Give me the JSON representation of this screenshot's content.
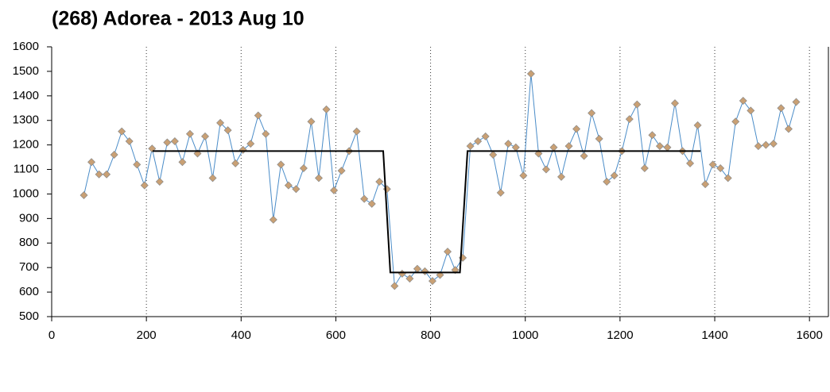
{
  "chart_data": {
    "type": "line",
    "title": "(268) Adorea - 2013 Aug 10",
    "xlim": [
      0,
      1640
    ],
    "ylim": [
      500,
      1600
    ],
    "xticks": [
      0,
      200,
      400,
      600,
      800,
      1000,
      1200,
      1400,
      1600
    ],
    "yticks": [
      500,
      600,
      700,
      800,
      900,
      1000,
      1100,
      1200,
      1300,
      1400,
      1500,
      1600
    ],
    "grid": true,
    "series": [
      {
        "color": "#4a8cc8",
        "marker_color": "#c9a074",
        "x": [
          68,
          84,
          100,
          116,
          132,
          148,
          164,
          180,
          196,
          212,
          228,
          244,
          260,
          276,
          292,
          308,
          324,
          340,
          356,
          372,
          388,
          404,
          420,
          436,
          452,
          468,
          484,
          500,
          516,
          532,
          548,
          564,
          580,
          596,
          612,
          628,
          644,
          660,
          676,
          692,
          708,
          724,
          740,
          756,
          772,
          788,
          804,
          820,
          836,
          852,
          868,
          884,
          900,
          916,
          932,
          948,
          964,
          980,
          996,
          1012,
          1028,
          1044,
          1060,
          1076,
          1092,
          1108,
          1124,
          1140,
          1156,
          1172,
          1188,
          1204,
          1220,
          1236,
          1252,
          1268,
          1284,
          1300,
          1316,
          1332,
          1348,
          1364,
          1380,
          1396,
          1412,
          1428,
          1444,
          1460,
          1476,
          1492,
          1508,
          1524,
          1540,
          1556,
          1572
        ],
        "values": [
          995,
          1130,
          1080,
          1080,
          1160,
          1255,
          1215,
          1120,
          1035,
          1185,
          1050,
          1210,
          1215,
          1130,
          1245,
          1165,
          1235,
          1065,
          1290,
          1260,
          1125,
          1180,
          1205,
          1320,
          1245,
          895,
          1120,
          1035,
          1020,
          1105,
          1295,
          1065,
          1345,
          1015,
          1095,
          1175,
          1255,
          980,
          960,
          1050,
          1020,
          625,
          675,
          655,
          695,
          685,
          645,
          670,
          765,
          690,
          740,
          1195,
          1215,
          1235,
          1160,
          1005,
          1205,
          1190,
          1075,
          1490,
          1165,
          1100,
          1190,
          1070,
          1195,
          1265,
          1155,
          1330,
          1225,
          1050,
          1075,
          1175,
          1305,
          1365,
          1105,
          1240,
          1195,
          1190,
          1370,
          1175,
          1125,
          1280,
          1040,
          1120,
          1105,
          1065,
          1295,
          1380,
          1340,
          1195,
          1200,
          1205,
          1350,
          1265,
          1375
        ]
      },
      {
        "color": "#000000",
        "x": [
          213,
          700,
          715,
          862,
          878,
          1370
        ],
        "values": [
          1175,
          1175,
          680,
          680,
          1175,
          1175
        ]
      }
    ]
  }
}
